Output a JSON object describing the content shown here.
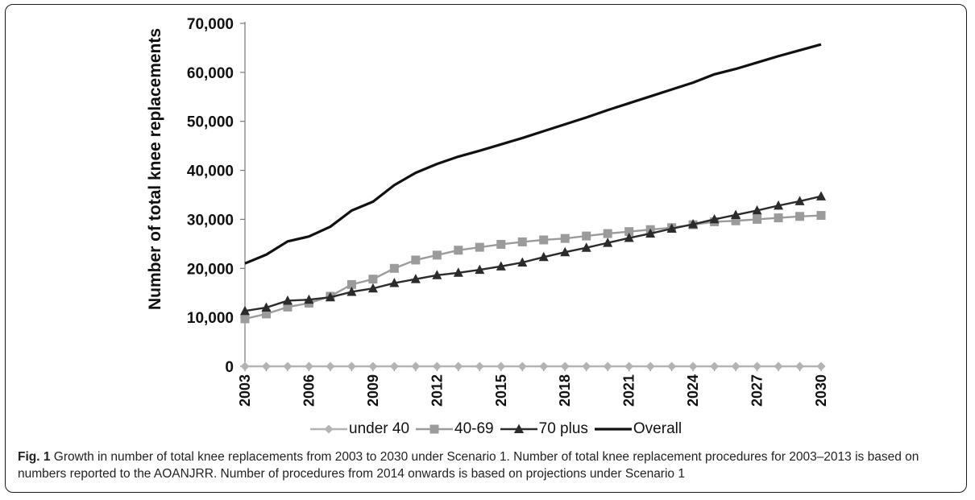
{
  "chart_data": {
    "type": "line",
    "ylabel": "Number of total knee replacements",
    "xlabel": "",
    "ylim": [
      0,
      70000
    ],
    "yticks": [
      0,
      10000,
      20000,
      30000,
      40000,
      50000,
      60000,
      70000
    ],
    "ytick_labels": [
      "0",
      "10,000",
      "20,000",
      "30,000",
      "40,000",
      "50,000",
      "60,000",
      "70,000"
    ],
    "x": [
      2003,
      2004,
      2005,
      2006,
      2007,
      2008,
      2009,
      2010,
      2011,
      2012,
      2013,
      2014,
      2015,
      2016,
      2017,
      2018,
      2019,
      2020,
      2021,
      2022,
      2023,
      2024,
      2025,
      2026,
      2027,
      2028,
      2029,
      2030
    ],
    "xtick_labels": [
      "2003",
      "2006",
      "2009",
      "2012",
      "2015",
      "2018",
      "2021",
      "2024",
      "2027",
      "2030"
    ],
    "xtick_values": [
      2003,
      2006,
      2009,
      2012,
      2015,
      2018,
      2021,
      2024,
      2027,
      2030
    ],
    "grid": false,
    "legend_position": "bottom",
    "series": [
      {
        "name": "under 40",
        "color": "#b3b3b3",
        "marker": "diamond",
        "values": [
          0,
          0,
          0,
          0,
          0,
          0,
          0,
          0,
          0,
          0,
          0,
          0,
          0,
          0,
          0,
          0,
          0,
          0,
          0,
          0,
          0,
          0,
          0,
          0,
          0,
          0,
          0,
          0
        ]
      },
      {
        "name": "40-69",
        "color": "#9b9b9b",
        "marker": "square",
        "values": [
          9700,
          10700,
          12100,
          12900,
          14300,
          16700,
          17800,
          20000,
          21700,
          22700,
          23700,
          24300,
          24900,
          25400,
          25800,
          26100,
          26600,
          27100,
          27500,
          27900,
          28300,
          28900,
          29500,
          29700,
          30000,
          30300,
          30600,
          30800
        ]
      },
      {
        "name": "70 plus",
        "color": "#2b2b2b",
        "marker": "triangle",
        "values": [
          11300,
          12000,
          13400,
          13600,
          14100,
          15200,
          15900,
          17000,
          17800,
          18600,
          19100,
          19700,
          20400,
          21200,
          22300,
          23300,
          24200,
          25200,
          26200,
          27100,
          28100,
          29000,
          30000,
          30900,
          31800,
          32800,
          33700,
          34700
        ]
      },
      {
        "name": "Overall",
        "color": "#111111",
        "marker": "none",
        "values": [
          21000,
          22800,
          25500,
          26500,
          28500,
          31800,
          33600,
          37000,
          39500,
          41300,
          42800,
          44000,
          45300,
          46600,
          48000,
          49400,
          50800,
          52300,
          53700,
          55100,
          56500,
          57900,
          59600,
          60700,
          62000,
          63300,
          64500,
          65700
        ]
      }
    ]
  },
  "caption": {
    "fig_label": "Fig. 1",
    "text": " Growth in number of total knee replacements from 2003 to 2030 under Scenario 1. Number of total knee replacement procedures for 2003–2013 is based on numbers reported to the AOANJRR. Number of procedures from 2014 onwards is based on projections under Scenario 1"
  }
}
